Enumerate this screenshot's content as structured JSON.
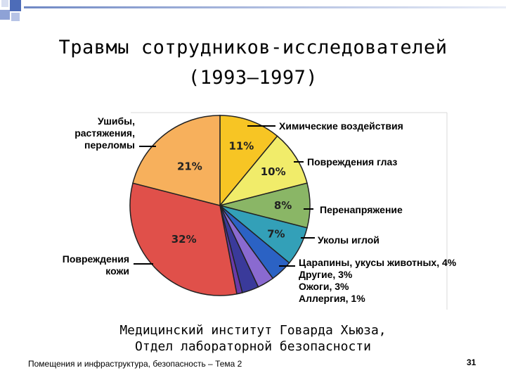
{
  "title_line1": "Травмы сотрудников-исследователей",
  "title_line2": "(1993–1997)",
  "source_line1": "Медицинский  институт Говарда Хьюза,",
  "source_line2": "Отдел лабораторной безопасности",
  "footnote": "Помещения и инфраструктура, безопасность – Тема 2",
  "page_number": "31",
  "chart_data": {
    "type": "pie",
    "title": "Травмы сотрудников-исследователей (1993–1997)",
    "slices": [
      {
        "label": "Химические воздействия",
        "value": 11,
        "value_label": "11%",
        "color": "#f7c524"
      },
      {
        "label": "Повреждения глаз",
        "value": 10,
        "value_label": "10%",
        "color": "#f1ec6a"
      },
      {
        "label": "Перенапряжение",
        "value": 8,
        "value_label": "8%",
        "color": "#8ab666"
      },
      {
        "label": "Уколы иглой",
        "value": 7,
        "value_label": "7%",
        "color": "#33a0b8"
      },
      {
        "label": "Царапины, укусы животных",
        "value": 4,
        "value_label": "",
        "color": "#2b62c4"
      },
      {
        "label": "Другие",
        "value": 3,
        "value_label": "",
        "color": "#8a6ad0"
      },
      {
        "label": "Ожоги",
        "value": 3,
        "value_label": "",
        "color": "#3a3a9a"
      },
      {
        "label": "Аллергия",
        "value": 1,
        "value_label": "",
        "color": "#6a3aa8"
      },
      {
        "label": "Повреждения кожи",
        "value": 32,
        "value_label": "32%",
        "color": "#e0504a"
      },
      {
        "label": "Ушибы, растяжения, переломы",
        "value": 21,
        "value_label": "21%",
        "color": "#f7b05c"
      }
    ],
    "labels": {
      "chem": "Химические воздействия",
      "eye": "Повреждения глаз",
      "strain": "Перенапряжение",
      "needle": "Уколы иглой",
      "small1": "Царапины, укусы животных, 4%",
      "small2": "Другие, 3%",
      "small3": "Ожоги, 3%",
      "small4": "Аллергия, 1%",
      "bruise1": "Ушибы,",
      "bruise2": "растяжения,",
      "bruise3": "переломы",
      "skin1": "Повреждения",
      "skin2": "кожи"
    }
  }
}
